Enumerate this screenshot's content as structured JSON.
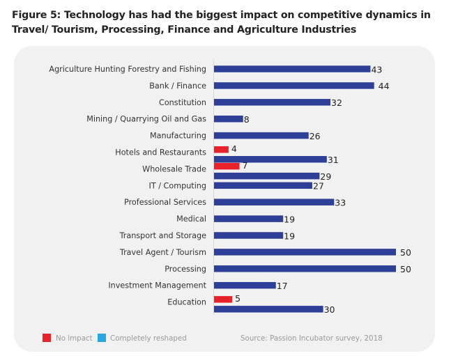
{
  "chart_data": {
    "type": "bar",
    "orientation": "horizontal",
    "title": "Figure 5: Technology has had the biggest impact on competitive dynamics in Travel/ Tourism, Processing, Finance and Agriculture Industries",
    "xlabel": "",
    "ylabel": "",
    "xlim": [
      0,
      50
    ],
    "grid": false,
    "categories": [
      "Agriculture Hunting Forestry and Fishing",
      "Bank  / Finance",
      "Constitution",
      "Mining / Quarrying Oil and Gas",
      "Manufacturing",
      "Hotels and Restaurants",
      "Wholesale Trade",
      "IT / Computing",
      "Professional Services",
      "Medical",
      "Transport and Storage",
      "Travel Agent /  Tourism",
      "Processing",
      "Investment Management",
      "Education"
    ],
    "series": [
      {
        "name": "No impact",
        "color": "#e8222b",
        "values": [
          null,
          null,
          null,
          null,
          null,
          4,
          7,
          null,
          null,
          null,
          null,
          null,
          null,
          null,
          5
        ]
      },
      {
        "name": "Completely reshaped",
        "color": "#2e3f98",
        "legend_color": "#29a8df",
        "values": [
          43,
          44,
          32,
          8,
          26,
          31,
          29,
          27,
          33,
          19,
          19,
          50,
          50,
          17,
          30
        ]
      }
    ],
    "legend": {
      "placement": "bottom-left",
      "items": [
        {
          "label": "No impact",
          "color": "#e8222b"
        },
        {
          "label": "Completely reshaped",
          "color": "#29a8df"
        }
      ]
    },
    "source": "Source: Passion Incubator survey, 2018"
  }
}
